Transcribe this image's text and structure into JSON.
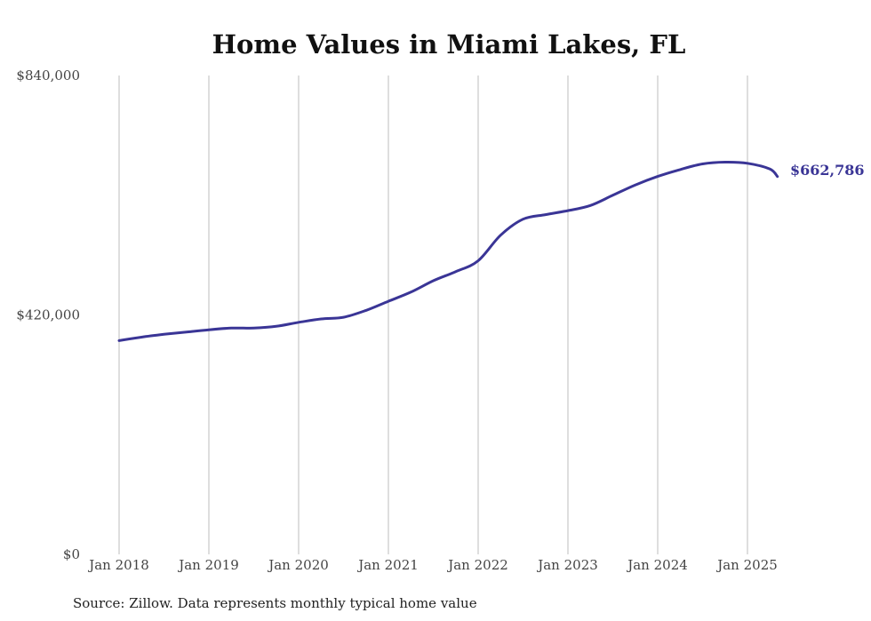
{
  "chart_data": {
    "type": "line",
    "title": "Home Values in Miami Lakes, FL",
    "source": "Source: Zillow. Data represents monthly typical home value",
    "ylim": [
      0,
      840000
    ],
    "yticks": [
      {
        "value": 0,
        "label": "$0"
      },
      {
        "value": 420000,
        "label": "$420,000"
      },
      {
        "value": 840000,
        "label": "$840,000"
      }
    ],
    "xticks": [
      {
        "value": "2018-01",
        "label": "Jan 2018"
      },
      {
        "value": "2019-01",
        "label": "Jan 2019"
      },
      {
        "value": "2020-01",
        "label": "Jan 2020"
      },
      {
        "value": "2021-01",
        "label": "Jan 2021"
      },
      {
        "value": "2022-01",
        "label": "Jan 2022"
      },
      {
        "value": "2023-01",
        "label": "Jan 2023"
      },
      {
        "value": "2024-01",
        "label": "Jan 2024"
      },
      {
        "value": "2025-01",
        "label": "Jan 2025"
      }
    ],
    "grid": {
      "vertical": true,
      "horizontal": false
    },
    "line_color": "#3a3596",
    "end_label": "$662,786",
    "series": [
      {
        "points": [
          {
            "x": "2018-01",
            "y": 375000
          },
          {
            "x": "2018-04",
            "y": 381000
          },
          {
            "x": "2018-07",
            "y": 386000
          },
          {
            "x": "2018-10",
            "y": 390000
          },
          {
            "x": "2019-01",
            "y": 394000
          },
          {
            "x": "2019-04",
            "y": 397000
          },
          {
            "x": "2019-07",
            "y": 397000
          },
          {
            "x": "2019-10",
            "y": 400000
          },
          {
            "x": "2020-01",
            "y": 407000
          },
          {
            "x": "2020-04",
            "y": 413000
          },
          {
            "x": "2020-07",
            "y": 416000
          },
          {
            "x": "2020-10",
            "y": 428000
          },
          {
            "x": "2021-01",
            "y": 444000
          },
          {
            "x": "2021-04",
            "y": 460000
          },
          {
            "x": "2021-07",
            "y": 480000
          },
          {
            "x": "2021-10",
            "y": 496000
          },
          {
            "x": "2022-01",
            "y": 515000
          },
          {
            "x": "2022-04",
            "y": 560000
          },
          {
            "x": "2022-07",
            "y": 588000
          },
          {
            "x": "2022-10",
            "y": 596000
          },
          {
            "x": "2023-01",
            "y": 603000
          },
          {
            "x": "2023-04",
            "y": 612000
          },
          {
            "x": "2023-07",
            "y": 630000
          },
          {
            "x": "2023-10",
            "y": 648000
          },
          {
            "x": "2024-01",
            "y": 663000
          },
          {
            "x": "2024-04",
            "y": 675000
          },
          {
            "x": "2024-07",
            "y": 685000
          },
          {
            "x": "2024-10",
            "y": 688000
          },
          {
            "x": "2025-01",
            "y": 686000
          },
          {
            "x": "2025-04",
            "y": 676000
          },
          {
            "x": "2025-05",
            "y": 662786
          }
        ]
      }
    ]
  }
}
